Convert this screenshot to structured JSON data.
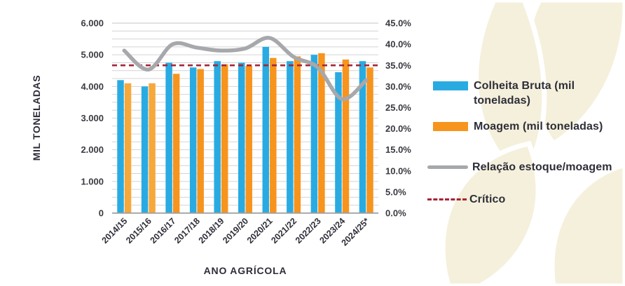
{
  "chart_data": {
    "type": "combo-bar-line",
    "categories": [
      "2014/15",
      "2015/16",
      "2016/17",
      "2017/18",
      "2018/19",
      "2019/20",
      "2020/21",
      "2021/22",
      "2022/23",
      "2023/24",
      "2024/25*"
    ],
    "series": [
      {
        "name": "Colheita Bruta (mil toneladas)",
        "type": "bar",
        "axis": "left",
        "color": "#29abe2",
        "values": [
          4200,
          4000,
          4750,
          4600,
          4800,
          4750,
          5250,
          4800,
          5000,
          4450,
          4800
        ]
      },
      {
        "name": "Moagem (mil toneladas)",
        "type": "bar",
        "axis": "left",
        "color": "#f7941d",
        "color_overrides": {
          "0": "#f6a83c",
          "1": "#f6a83c"
        },
        "values": [
          4100,
          4100,
          4400,
          4550,
          4700,
          4650,
          4900,
          4950,
          5050,
          4850,
          4600
        ]
      },
      {
        "name": "Relação estoque/moagem",
        "type": "line",
        "axis": "right",
        "color": "#a6a8ab",
        "values": [
          38.5,
          34.0,
          40.0,
          39.2,
          38.5,
          39.0,
          41.5,
          37.0,
          34.5,
          27.0,
          31.5
        ]
      },
      {
        "name": "Crítico",
        "type": "dashed-line",
        "axis": "right",
        "color": "#a32638",
        "value": 35.0
      }
    ],
    "left_axis": {
      "title": "MIL TONELADAS",
      "min": 0,
      "max": 6000,
      "major_step": 1000,
      "minor_step": 250,
      "tick_labels": [
        "6.000",
        "5.000",
        "4.000",
        "3.000",
        "2.000",
        "1.000",
        "0"
      ]
    },
    "right_axis": {
      "min": 0,
      "max": 45,
      "step": 5,
      "tick_labels": [
        "45.0%",
        "40.0%",
        "35.0%",
        "30.0%",
        "25.0%",
        "20.0%",
        "15.0%",
        "10.0%",
        "5.0%",
        "0.0%"
      ]
    },
    "x_axis": {
      "title": "ANO AGRÍCOLA"
    },
    "grid": true,
    "legend_position": "right",
    "colors": {
      "grid": "#d4d4d4",
      "grid_top": "#c6c6c6",
      "axis_line": "#9f9f9f",
      "text": "#2e2e38"
    }
  },
  "decor": {
    "watermark_color": "#f5f0dc"
  }
}
